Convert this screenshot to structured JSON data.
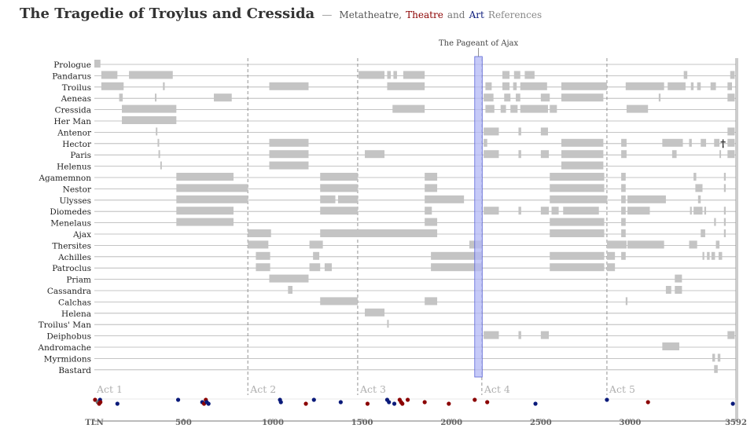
{
  "title": {
    "main": "The Tragedie of Troylus and Cressida",
    "dash": "—",
    "sub_meta": "Metatheatre,",
    "sub_theatre": "Theatre",
    "sub_and": "and",
    "sub_art": "Art",
    "sub_refs": "References"
  },
  "colors": {
    "bar": "#c4c4c4",
    "gridline": "#b0b0b0",
    "act_line": "#888888",
    "highlight_fill": "#b3b8f5",
    "highlight_stroke": "#5a63d6",
    "metatheatre": "#6e6e6e",
    "theatre": "#8b0000",
    "art": "#0a1a7a"
  },
  "chart_data": {
    "type": "timeline",
    "x_range": [
      1,
      3592
    ],
    "x_ticks": [
      {
        "value": 1,
        "label": "TLN"
      },
      {
        "value": 500,
        "label": "500"
      },
      {
        "value": 1000,
        "label": "1000"
      },
      {
        "value": 1500,
        "label": "1500"
      },
      {
        "value": 2000,
        "label": "2000"
      },
      {
        "value": 2500,
        "label": "2500"
      },
      {
        "value": 3000,
        "label": "3000"
      },
      {
        "value": 3592,
        "label": "3592"
      }
    ],
    "acts": [
      {
        "label": "Act 1",
        "start": 1
      },
      {
        "label": "Act 2",
        "start": 860
      },
      {
        "label": "Act 3",
        "start": 1475
      },
      {
        "label": "Act 4",
        "start": 2170
      },
      {
        "label": "Act 5",
        "start": 2870
      }
    ],
    "highlight": {
      "label": "The Pageant of Ajax",
      "start": 2130,
      "end": 2172
    },
    "characters": [
      {
        "name": "Prologue",
        "spans": [
          [
            1,
            35
          ]
        ]
      },
      {
        "name": "Pandarus",
        "spans": [
          [
            40,
            130
          ],
          [
            195,
            440
          ],
          [
            1480,
            1625
          ],
          [
            1640,
            1660
          ],
          [
            1675,
            1695
          ],
          [
            1730,
            1850
          ],
          [
            2285,
            2325
          ],
          [
            2350,
            2385
          ],
          [
            2410,
            2465
          ],
          [
            3300,
            3320
          ],
          [
            3560,
            3585
          ]
        ]
      },
      {
        "name": "Troilus",
        "spans": [
          [
            40,
            165
          ],
          [
            385,
            395
          ],
          [
            980,
            1200
          ],
          [
            1640,
            1850
          ],
          [
            2190,
            2225
          ],
          [
            2285,
            2325
          ],
          [
            2345,
            2365
          ],
          [
            2385,
            2535
          ],
          [
            2615,
            2870
          ],
          [
            2975,
            3190
          ],
          [
            3210,
            3310
          ],
          [
            3340,
            3355
          ],
          [
            3375,
            3395
          ],
          [
            3450,
            3480
          ],
          [
            3545,
            3570
          ]
        ]
      },
      {
        "name": "Aeneas",
        "spans": [
          [
            140,
            160
          ],
          [
            340,
            345
          ],
          [
            670,
            770
          ],
          [
            2180,
            2235
          ],
          [
            2295,
            2330
          ],
          [
            2360,
            2385
          ],
          [
            2500,
            2550
          ],
          [
            2615,
            2850
          ],
          [
            3160,
            3170
          ],
          [
            3545,
            3585
          ]
        ]
      },
      {
        "name": "Cressida",
        "spans": [
          [
            155,
            460
          ],
          [
            1670,
            1850
          ],
          [
            2190,
            2240
          ],
          [
            2275,
            2305
          ],
          [
            2330,
            2370
          ],
          [
            2385,
            2540
          ],
          [
            2550,
            2590
          ],
          [
            2980,
            3100
          ]
        ]
      },
      {
        "name": "Her Man",
        "spans": [
          [
            155,
            460
          ]
        ]
      },
      {
        "name": "Antenor",
        "spans": [
          [
            345,
            350
          ],
          [
            2180,
            2265
          ],
          [
            2375,
            2390
          ],
          [
            2500,
            2540
          ],
          [
            3545,
            3585
          ]
        ]
      },
      {
        "name": "Hector",
        "spans": [
          [
            355,
            360
          ],
          [
            980,
            1200
          ],
          [
            2180,
            2200
          ],
          [
            2615,
            2850
          ],
          [
            2950,
            2980
          ],
          [
            3180,
            3295
          ],
          [
            3330,
            3345
          ],
          [
            3395,
            3425
          ],
          [
            3470,
            3500
          ],
          [
            3545,
            3585
          ]
        ]
      },
      {
        "name": "Paris",
        "spans": [
          [
            360,
            365
          ],
          [
            980,
            1200
          ],
          [
            1515,
            1625
          ],
          [
            2180,
            2265
          ],
          [
            2375,
            2390
          ],
          [
            2500,
            2545
          ],
          [
            2615,
            2850
          ],
          [
            2950,
            2980
          ],
          [
            3235,
            3260
          ],
          [
            3500,
            3505
          ],
          [
            3545,
            3585
          ]
        ]
      },
      {
        "name": "Helenus",
        "spans": [
          [
            370,
            375
          ],
          [
            980,
            1200
          ],
          [
            2615,
            2850
          ]
        ]
      },
      {
        "name": "Agamemnon",
        "spans": [
          [
            460,
            780
          ],
          [
            1265,
            1475
          ],
          [
            1850,
            1920
          ],
          [
            2550,
            2855
          ],
          [
            2950,
            2975
          ],
          [
            3355,
            3370
          ],
          [
            3525,
            3535
          ]
        ]
      },
      {
        "name": "Nestor",
        "spans": [
          [
            460,
            860
          ],
          [
            1265,
            1475
          ],
          [
            1850,
            1920
          ],
          [
            2550,
            2855
          ],
          [
            2950,
            2975
          ],
          [
            3365,
            3405
          ],
          [
            3525,
            3535
          ]
        ]
      },
      {
        "name": "Ulysses",
        "spans": [
          [
            460,
            860
          ],
          [
            1265,
            1350
          ],
          [
            1365,
            1475
          ],
          [
            1850,
            2070
          ],
          [
            2550,
            2870
          ],
          [
            2950,
            2975
          ],
          [
            2985,
            3200
          ],
          [
            3380,
            3395
          ]
        ]
      },
      {
        "name": "Diomedes",
        "spans": [
          [
            460,
            780
          ],
          [
            1265,
            1475
          ],
          [
            1850,
            1890
          ],
          [
            2180,
            2265
          ],
          [
            2375,
            2390
          ],
          [
            2500,
            2545
          ],
          [
            2560,
            2600
          ],
          [
            2625,
            2825
          ],
          [
            2950,
            2975
          ],
          [
            2985,
            3110
          ],
          [
            3335,
            3345
          ],
          [
            3355,
            3405
          ],
          [
            3415,
            3425
          ],
          [
            3525,
            3535
          ]
        ]
      },
      {
        "name": "Menelaus",
        "spans": [
          [
            460,
            780
          ],
          [
            1850,
            1920
          ],
          [
            2550,
            2855
          ],
          [
            2950,
            2975
          ],
          [
            3470,
            3480
          ],
          [
            3525,
            3535
          ]
        ]
      },
      {
        "name": "Ajax",
        "spans": [
          [
            860,
            990
          ],
          [
            1265,
            1920
          ],
          [
            2550,
            2855
          ],
          [
            2950,
            2975
          ],
          [
            3395,
            3420
          ],
          [
            3525,
            3535
          ]
        ]
      },
      {
        "name": "Thersites",
        "spans": [
          [
            860,
            975
          ],
          [
            1205,
            1280
          ],
          [
            2100,
            2170
          ],
          [
            2870,
            2980
          ],
          [
            2985,
            3190
          ],
          [
            3330,
            3375
          ],
          [
            3480,
            3500
          ]
        ]
      },
      {
        "name": "Achilles",
        "spans": [
          [
            905,
            985
          ],
          [
            1225,
            1260
          ],
          [
            1885,
            2170
          ],
          [
            2550,
            2855
          ],
          [
            2870,
            2915
          ],
          [
            2950,
            2975
          ],
          [
            3405,
            3415
          ],
          [
            3430,
            3445
          ],
          [
            3455,
            3475
          ],
          [
            3495,
            3515
          ]
        ]
      },
      {
        "name": "Patroclus",
        "spans": [
          [
            905,
            985
          ],
          [
            1205,
            1265
          ],
          [
            1290,
            1330
          ],
          [
            1885,
            2170
          ],
          [
            2550,
            2855
          ],
          [
            2870,
            2915
          ]
        ]
      },
      {
        "name": "Priam",
        "spans": [
          [
            980,
            1200
          ],
          [
            3250,
            3290
          ]
        ]
      },
      {
        "name": "Cassandra",
        "spans": [
          [
            1085,
            1110
          ],
          [
            3200,
            3230
          ],
          [
            3250,
            3290
          ]
        ]
      },
      {
        "name": "Calchas",
        "spans": [
          [
            1265,
            1475
          ],
          [
            1850,
            1920
          ],
          [
            2975,
            2985
          ]
        ]
      },
      {
        "name": "Helena",
        "spans": [
          [
            1515,
            1625
          ]
        ]
      },
      {
        "name": "Troilus' Man",
        "spans": [
          [
            1640,
            1648
          ]
        ]
      },
      {
        "name": "Deiphobus",
        "spans": [
          [
            2180,
            2265
          ],
          [
            2375,
            2390
          ],
          [
            2500,
            2545
          ],
          [
            3545,
            3585
          ]
        ]
      },
      {
        "name": "Andromache",
        "spans": [
          [
            3180,
            3275
          ]
        ]
      },
      {
        "name": "Myrmidons",
        "spans": [
          [
            3460,
            3475
          ],
          [
            3490,
            3505
          ]
        ]
      },
      {
        "name": "Bastard",
        "spans": [
          [
            3470,
            3490
          ]
        ]
      }
    ],
    "annotations": [
      {
        "label": "†",
        "character": "Hector",
        "x": 3520
      }
    ],
    "references": [
      {
        "x": 5,
        "type": "theatre"
      },
      {
        "x": 20,
        "type": "metatheatre"
      },
      {
        "x": 28,
        "type": "theatre"
      },
      {
        "x": 33,
        "type": "art"
      },
      {
        "x": 35,
        "type": "theatre"
      },
      {
        "x": 130,
        "type": "art"
      },
      {
        "x": 470,
        "type": "art"
      },
      {
        "x": 605,
        "type": "art"
      },
      {
        "x": 615,
        "type": "theatre"
      },
      {
        "x": 625,
        "type": "theatre"
      },
      {
        "x": 630,
        "type": "art"
      },
      {
        "x": 640,
        "type": "art"
      },
      {
        "x": 1040,
        "type": "art"
      },
      {
        "x": 1045,
        "type": "art"
      },
      {
        "x": 1185,
        "type": "theatre"
      },
      {
        "x": 1230,
        "type": "art"
      },
      {
        "x": 1380,
        "type": "art"
      },
      {
        "x": 1530,
        "type": "theatre"
      },
      {
        "x": 1640,
        "type": "art"
      },
      {
        "x": 1650,
        "type": "art"
      },
      {
        "x": 1680,
        "type": "art"
      },
      {
        "x": 1710,
        "type": "theatre"
      },
      {
        "x": 1718,
        "type": "theatre"
      },
      {
        "x": 1725,
        "type": "theatre"
      },
      {
        "x": 1755,
        "type": "theatre"
      },
      {
        "x": 1850,
        "type": "theatre"
      },
      {
        "x": 1985,
        "type": "theatre"
      },
      {
        "x": 2130,
        "type": "theatre"
      },
      {
        "x": 2200,
        "type": "theatre"
      },
      {
        "x": 2470,
        "type": "art"
      },
      {
        "x": 2870,
        "type": "art"
      },
      {
        "x": 3100,
        "type": "theatre"
      },
      {
        "x": 3575,
        "type": "art"
      }
    ]
  }
}
